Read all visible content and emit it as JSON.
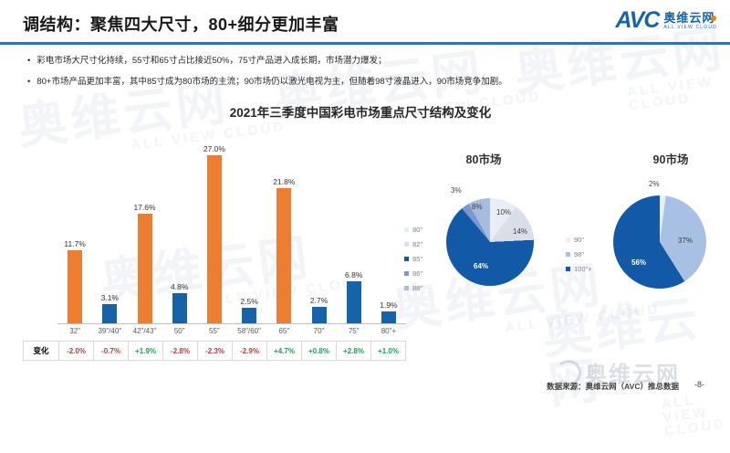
{
  "header": {
    "title": "调结构：聚焦四大尺寸，80+细分更加丰富",
    "logo": {
      "avc": "AVC",
      "name": "奥维云网",
      "tagline": "ALL VIEW CLOUD"
    }
  },
  "bullets": [
    "彩电市场大尺寸化持续，55寸和65寸占比接近50%，75寸产品进入成长期，市场潜力爆发；",
    "80+市场产品更加丰富，其中85寸成为80市场的主流；90市场仍以激光电视为主，但随着98寸液晶进入，90市场竞争加剧。"
  ],
  "chart_data": [
    {
      "type": "bar",
      "title": "2021年三季度中国彩电市场重点尺寸结构及变化",
      "categories": [
        "32\"",
        "39\"/40\"",
        "42\"/43\"",
        "50\"",
        "55\"",
        "58\"/60\"",
        "65\"",
        "70\"",
        "75\"",
        "80\"+"
      ],
      "values": [
        11.7,
        3.1,
        17.6,
        4.8,
        27.0,
        2.5,
        21.8,
        2.7,
        6.8,
        1.9
      ],
      "bar_colors": [
        "orange",
        "blue",
        "orange",
        "blue",
        "orange",
        "blue",
        "orange",
        "blue",
        "blue",
        "blue"
      ],
      "ylim": [
        0,
        30
      ],
      "grid": false,
      "change_row": {
        "label": "变化",
        "values": [
          "-2.0%",
          "-0.7%",
          "+1.9%",
          "-2.8%",
          "-2.3%",
          "-2.9%",
          "+4.7%",
          "+0.8%",
          "+2.8%",
          "+1.0%"
        ]
      }
    },
    {
      "type": "pie",
      "title": "80市场",
      "labels": [
        "80\"",
        "82\"",
        "85\"",
        "86\"",
        "88\""
      ],
      "values": [
        10,
        14,
        64,
        3,
        8
      ],
      "value_labels": [
        "10%",
        "14%",
        "64%",
        "3%",
        "8%"
      ],
      "colors": [
        "#E9EEF6",
        "#D9DEE8",
        "#1259A7",
        "#7C97CE",
        "#A7BBDF"
      ],
      "legend_position": "left"
    },
    {
      "type": "pie",
      "title": "90市场",
      "labels": [
        "90\"",
        "98\"",
        "100\"+"
      ],
      "values": [
        2,
        37,
        56
      ],
      "value_labels": [
        "2%",
        "37%",
        "56%"
      ],
      "colors": [
        "#E9EEF6",
        "#A7C0E4",
        "#1259A7"
      ],
      "legend_position": "left"
    }
  ],
  "footer": {
    "source": "数据来源：奥维云网（AVC）推总数据",
    "page": "-8-",
    "watermark_logo": "奥维云网"
  },
  "watermark": {
    "cn": "奥维云网",
    "en": "ALL VIEW CLOUD"
  },
  "colors": {
    "orange": "#ED7D31",
    "blue": "#1663A9",
    "negative": "#C23B3B",
    "positive": "#1FA05A",
    "accent_line": "#2E74B5",
    "pie_dark": "#1259A7"
  }
}
